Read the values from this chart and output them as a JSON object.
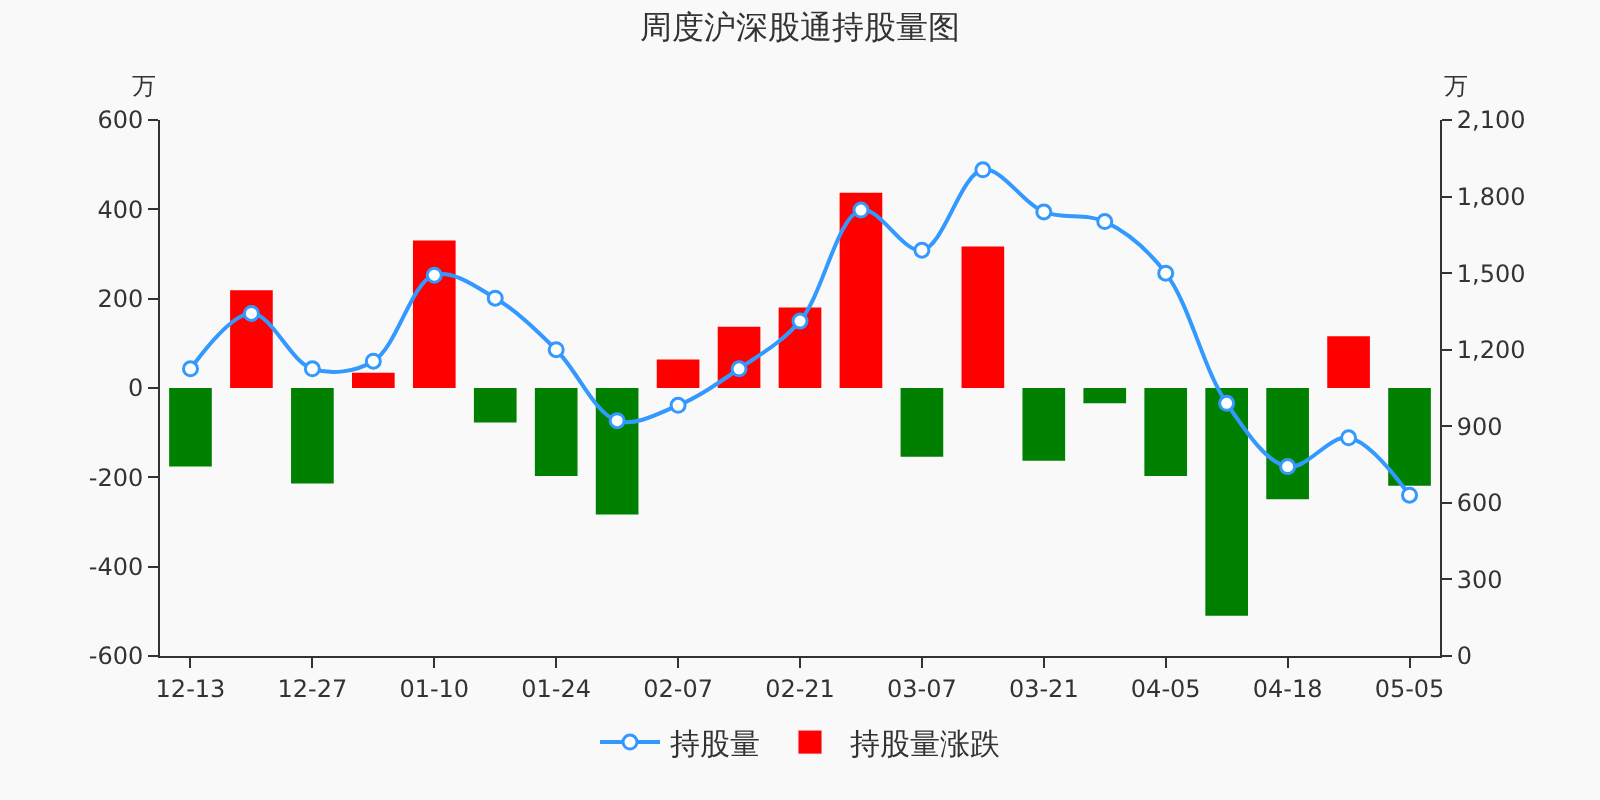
{
  "chart_data": {
    "type": "bar",
    "title": "周度沪深股通持股量图",
    "categories": [
      "12-13",
      null,
      "12-27",
      null,
      "01-10",
      null,
      "01-24",
      null,
      "02-07",
      null,
      "02-21",
      null,
      "03-07",
      null,
      "03-21",
      null,
      "04-05",
      null,
      "04-18",
      null,
      "05-05"
    ],
    "series": [
      {
        "name": "持股量",
        "type": "line",
        "axis": "y2",
        "color": "#3399ff",
        "marker": "circle",
        "values": [
          1125,
          1342,
          1125,
          1155,
          1492,
          1402,
          1200,
          922,
          982,
          1125,
          1312,
          1747,
          1590,
          1905,
          1740,
          1702,
          1500,
          990,
          742,
          855,
          630
        ]
      },
      {
        "name": "持股量涨跌",
        "color": "#ff0000",
        "colors": [
          "#008000",
          "#ff0000",
          "#008000",
          "#ff0000",
          "#ff0000",
          "#008000",
          "#008000",
          "#008000",
          "#ff0000",
          "#ff0000",
          "#ff0000",
          "#ff0000",
          "#008000",
          "#ff0000",
          "#008000",
          "#008000",
          "#008000",
          "#008000",
          "#008000",
          "#ff0000",
          "#008000"
        ],
        "values": [
          -176,
          219,
          -214,
          34,
          330,
          -77,
          -197,
          -283,
          64,
          137,
          180,
          437,
          -154,
          317,
          -163,
          -34,
          -197,
          -510,
          -249,
          116,
          -219
        ]
      }
    ],
    "ylabel": "万",
    "y2label": "万",
    "ylim": [
      -600,
      600
    ],
    "yticks": [
      -600,
      -400,
      -200,
      0,
      200,
      400,
      600
    ],
    "y2lim": [
      0,
      2100
    ],
    "y2ticks": [
      0,
      300,
      600,
      900,
      {
        "value": 1200,
        "label": "1,200"
      },
      {
        "value": 1500,
        "label": "1,500"
      },
      {
        "value": 1800,
        "label": "1,800"
      },
      {
        "value": 2100,
        "label": "2,100"
      }
    ],
    "grid": false,
    "legend": "bottom"
  }
}
